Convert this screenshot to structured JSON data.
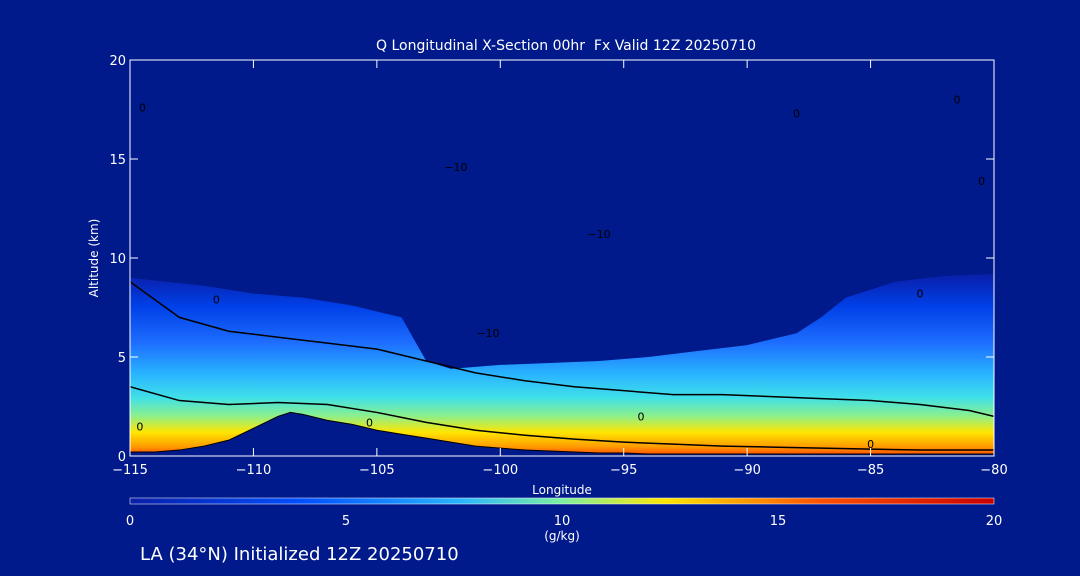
{
  "chart_data": {
    "type": "heatmap",
    "title": "Q Longitudinal X-Section 00hr  Fx Valid 12Z 20250710",
    "xlabel": "Longitude",
    "ylabel": "Altitude (km)",
    "xlim": [
      -115,
      -80
    ],
    "ylim": [
      0,
      20
    ],
    "x_ticks": [
      "−115",
      "−110",
      "−105",
      "−100",
      "−95",
      "−90",
      "−85",
      "−80"
    ],
    "x_tick_values": [
      -115,
      -110,
      -105,
      -100,
      -95,
      -90,
      -85,
      -80
    ],
    "y_ticks": [
      "0",
      "5",
      "10",
      "15",
      "20"
    ],
    "y_tick_values": [
      0,
      5,
      10,
      15,
      20
    ],
    "colorbar": {
      "label": "(g/kg)",
      "ticks": [
        "0",
        "5",
        "10",
        "15",
        "20"
      ],
      "tick_values": [
        0,
        5,
        10,
        15,
        20
      ],
      "range": [
        0,
        20
      ],
      "colors": [
        "#0a1ea8",
        "#0050ff",
        "#28b4ff",
        "#7ef0a0",
        "#ffe600",
        "#ff5000",
        "#c80000"
      ]
    },
    "terrain_profile": {
      "lon": [
        -115,
        -114,
        -113,
        -112,
        -111,
        -110,
        -109,
        -108.5,
        -108,
        -107,
        -106,
        -105,
        -104,
        -103,
        -102,
        -101,
        -100,
        -99,
        -98,
        -97,
        -96,
        -95,
        -94,
        -93,
        -92,
        -91,
        -90,
        -89,
        -88,
        -87,
        -86,
        -85,
        -84,
        -83,
        -82,
        -81,
        -80
      ],
      "alt_km": [
        0.2,
        0.2,
        0.3,
        0.5,
        0.8,
        1.4,
        2.0,
        2.2,
        2.1,
        1.8,
        1.6,
        1.3,
        1.1,
        0.9,
        0.7,
        0.5,
        0.4,
        0.3,
        0.25,
        0.2,
        0.15,
        0.15,
        0.1,
        0.1,
        0.1,
        0.1,
        0.1,
        0.1,
        0.1,
        0.1,
        0.1,
        0.1,
        0.1,
        0.1,
        0.1,
        0.1,
        0.1
      ]
    },
    "moist_layer_top": {
      "lon": [
        -115,
        -112,
        -110,
        -108,
        -106,
        -104,
        -103,
        -102,
        -101,
        -100,
        -98,
        -96,
        -94,
        -92,
        -90,
        -88,
        -87,
        -86,
        -84,
        -82,
        -80
      ],
      "alt_km": [
        9.0,
        8.6,
        8.2,
        8.0,
        7.6,
        7.0,
        4.8,
        4.4,
        4.5,
        4.6,
        4.7,
        4.8,
        5.0,
        5.3,
        5.6,
        6.2,
        7.0,
        8.0,
        8.8,
        9.1,
        9.2
      ]
    },
    "series": [
      {
        "values": [
          [
            -115,
            8.8
          ],
          [
            -113,
            7.0
          ],
          [
            -111,
            6.3
          ],
          [
            -109,
            6.0
          ],
          [
            -107,
            5.7
          ],
          [
            -105,
            5.4
          ],
          [
            -103,
            4.8
          ],
          [
            -101,
            4.2
          ],
          [
            -99,
            3.8
          ],
          [
            -97,
            3.5
          ],
          [
            -95,
            3.3
          ],
          [
            -93,
            3.1
          ],
          [
            -91,
            3.1
          ],
          [
            -89,
            3.0
          ],
          [
            -87,
            2.9
          ],
          [
            -85,
            2.8
          ],
          [
            -83,
            2.6
          ],
          [
            -81,
            2.3
          ],
          [
            -80,
            2.0
          ]
        ]
      },
      {
        "values": [
          [
            -115,
            3.5
          ],
          [
            -113,
            2.8
          ],
          [
            -111,
            2.6
          ],
          [
            -109,
            2.7
          ],
          [
            -107,
            2.6
          ],
          [
            -105,
            2.2
          ],
          [
            -103,
            1.7
          ],
          [
            -101,
            1.3
          ],
          [
            -99,
            1.05
          ],
          [
            -97,
            0.85
          ],
          [
            -95,
            0.7
          ],
          [
            -93,
            0.6
          ],
          [
            -91,
            0.5
          ],
          [
            -89,
            0.45
          ],
          [
            -87,
            0.4
          ],
          [
            -85,
            0.35
          ],
          [
            -83,
            0.3
          ],
          [
            -81,
            0.3
          ],
          [
            -80,
            0.3
          ]
        ]
      }
    ],
    "contour_labels": [
      {
        "text": "0",
        "lon": -114.5,
        "alt": 17.6
      },
      {
        "text": "0",
        "lon": -114.6,
        "alt": 1.5
      },
      {
        "text": "0",
        "lon": -111.5,
        "alt": 7.9
      },
      {
        "text": "0",
        "lon": -105.3,
        "alt": 1.7
      },
      {
        "text": "0",
        "lon": -94.3,
        "alt": 2.0
      },
      {
        "text": "0",
        "lon": -85.0,
        "alt": 0.6
      },
      {
        "text": "0",
        "lon": -88.0,
        "alt": 17.3
      },
      {
        "text": "0",
        "lon": -81.5,
        "alt": 18.0
      },
      {
        "text": "0",
        "lon": -80.5,
        "alt": 13.9
      },
      {
        "text": "0",
        "lon": -83.0,
        "alt": 8.2
      },
      {
        "text": "−10",
        "lon": -101.8,
        "alt": 14.6
      },
      {
        "text": "−10",
        "lon": -100.5,
        "alt": 6.2
      },
      {
        "text": "−10",
        "lon": -96.0,
        "alt": 11.2
      }
    ],
    "legend": "colorbar-bottom",
    "grid": false
  },
  "caption": "LA (34°N) Initialized 12Z 20250710"
}
